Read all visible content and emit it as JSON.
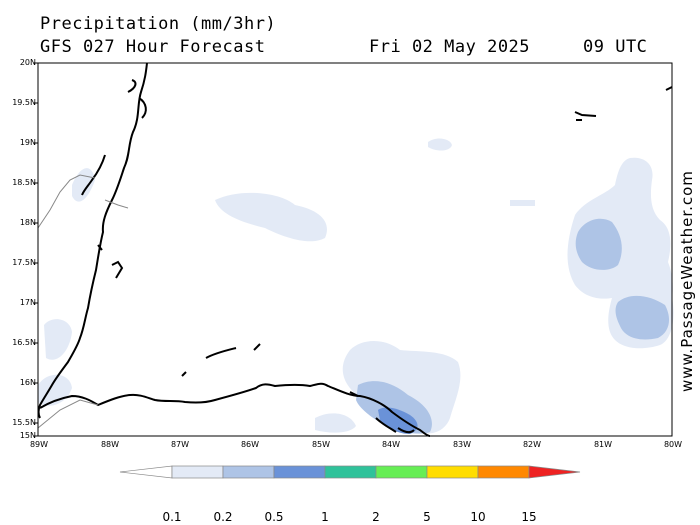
{
  "header": {
    "title": "Precipitation (mm/3hr)",
    "subtitle": "GFS 027 Hour Forecast",
    "date": "Fri 02 May 2025",
    "time": "09 UTC"
  },
  "watermark": "www.PassageWeather.com",
  "axes": {
    "lat_labels": [
      "20N",
      "19.5N",
      "19N",
      "18.5N",
      "18N",
      "17.5N",
      "17N",
      "16.5N",
      "16N",
      "15.5N",
      "15N"
    ],
    "lon_labels": [
      "89W",
      "88W",
      "87W",
      "86W",
      "85W",
      "84W",
      "83W",
      "82W",
      "81W",
      "80W"
    ]
  },
  "colorbar": {
    "labels": [
      "0.1",
      "0.2",
      "0.5",
      "1",
      "2",
      "5",
      "10",
      "15"
    ],
    "colors": [
      "#ffffff",
      "#e3eaf6",
      "#aec4e6",
      "#6a92d8",
      "#2fc29a",
      "#66ee55",
      "#ffdd00",
      "#ff8800",
      "#ee2222"
    ]
  }
}
